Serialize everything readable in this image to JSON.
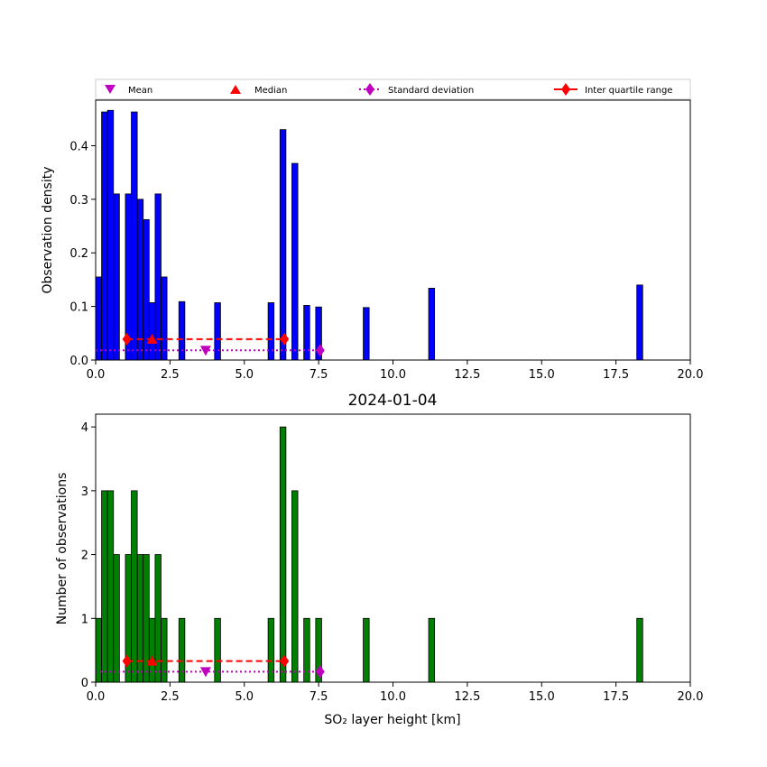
{
  "chart_data": [
    {
      "type": "bar",
      "title": "",
      "xlabel": "",
      "ylabel": "Observation density",
      "xlim": [
        0,
        20
      ],
      "ylim": [
        0,
        0.485
      ],
      "xticks": [
        "0.0",
        "2.5",
        "5.0",
        "7.5",
        "10.0",
        "12.5",
        "15.0",
        "17.5",
        "20.0"
      ],
      "yticks": [
        "0.0",
        "0.1",
        "0.2",
        "0.3",
        "0.4"
      ],
      "bar_color": "#0000ff",
      "bin_width": 0.2,
      "bins": [
        {
          "x": 0.0,
          "value": 0.155
        },
        {
          "x": 0.2,
          "value": 0.463
        },
        {
          "x": 0.4,
          "value": 0.466
        },
        {
          "x": 0.6,
          "value": 0.31
        },
        {
          "x": 1.0,
          "value": 0.31
        },
        {
          "x": 1.2,
          "value": 0.463
        },
        {
          "x": 1.4,
          "value": 0.3
        },
        {
          "x": 1.6,
          "value": 0.262
        },
        {
          "x": 1.8,
          "value": 0.107
        },
        {
          "x": 2.0,
          "value": 0.31
        },
        {
          "x": 2.2,
          "value": 0.155
        },
        {
          "x": 2.8,
          "value": 0.109
        },
        {
          "x": 4.0,
          "value": 0.107
        },
        {
          "x": 5.8,
          "value": 0.107
        },
        {
          "x": 6.2,
          "value": 0.43
        },
        {
          "x": 6.6,
          "value": 0.367
        },
        {
          "x": 7.0,
          "value": 0.102
        },
        {
          "x": 7.4,
          "value": 0.099
        },
        {
          "x": 9.0,
          "value": 0.098
        },
        {
          "x": 11.2,
          "value": 0.134
        },
        {
          "x": 18.2,
          "value": 0.14
        }
      ],
      "stats": {
        "mean": 3.7,
        "median": 1.9,
        "std_range": [
          0.0,
          7.55
        ],
        "iqr": [
          1.05,
          6.35
        ],
        "mean_level": 0.018,
        "std_level": 0.018,
        "iqr_level": 0.039
      }
    },
    {
      "type": "bar",
      "title": "2024-01-04",
      "xlabel": "SO₂ layer height [km]",
      "ylabel": "Number of observations",
      "xlim": [
        0,
        20
      ],
      "ylim": [
        0,
        4.2
      ],
      "xticks": [
        "0.0",
        "2.5",
        "5.0",
        "7.5",
        "10.0",
        "12.5",
        "15.0",
        "17.5",
        "20.0"
      ],
      "yticks": [
        "0",
        "1",
        "2",
        "3",
        "4"
      ],
      "bar_color": "#008000",
      "bin_width": 0.2,
      "bins": [
        {
          "x": 0.0,
          "value": 1
        },
        {
          "x": 0.2,
          "value": 3
        },
        {
          "x": 0.4,
          "value": 3
        },
        {
          "x": 0.6,
          "value": 2
        },
        {
          "x": 1.0,
          "value": 2
        },
        {
          "x": 1.2,
          "value": 3
        },
        {
          "x": 1.4,
          "value": 2
        },
        {
          "x": 1.6,
          "value": 2
        },
        {
          "x": 1.8,
          "value": 1
        },
        {
          "x": 2.0,
          "value": 2
        },
        {
          "x": 2.2,
          "value": 1
        },
        {
          "x": 2.8,
          "value": 1
        },
        {
          "x": 4.0,
          "value": 1
        },
        {
          "x": 5.8,
          "value": 1
        },
        {
          "x": 6.2,
          "value": 4
        },
        {
          "x": 6.6,
          "value": 3
        },
        {
          "x": 7.0,
          "value": 1
        },
        {
          "x": 7.4,
          "value": 1
        },
        {
          "x": 9.0,
          "value": 1
        },
        {
          "x": 11.2,
          "value": 1
        },
        {
          "x": 18.2,
          "value": 1
        }
      ],
      "stats": {
        "mean": 3.7,
        "median": 1.9,
        "std_range": [
          0.0,
          7.55
        ],
        "iqr": [
          1.05,
          6.35
        ],
        "mean_level": 0.165,
        "std_level": 0.165,
        "iqr_level": 0.33
      }
    }
  ],
  "legend": {
    "placement": "top",
    "items": [
      {
        "label": "Mean",
        "marker": "triangle-down",
        "color": "#bf00bf"
      },
      {
        "label": "Median",
        "marker": "triangle-up",
        "color": "#ff0000"
      },
      {
        "label": "Standard deviation",
        "marker": "diamond",
        "line": "dotted",
        "color": "#bf00bf"
      },
      {
        "label": "Inter quartile range",
        "marker": "diamond",
        "line": "dashed",
        "color": "#ff0000"
      }
    ]
  }
}
